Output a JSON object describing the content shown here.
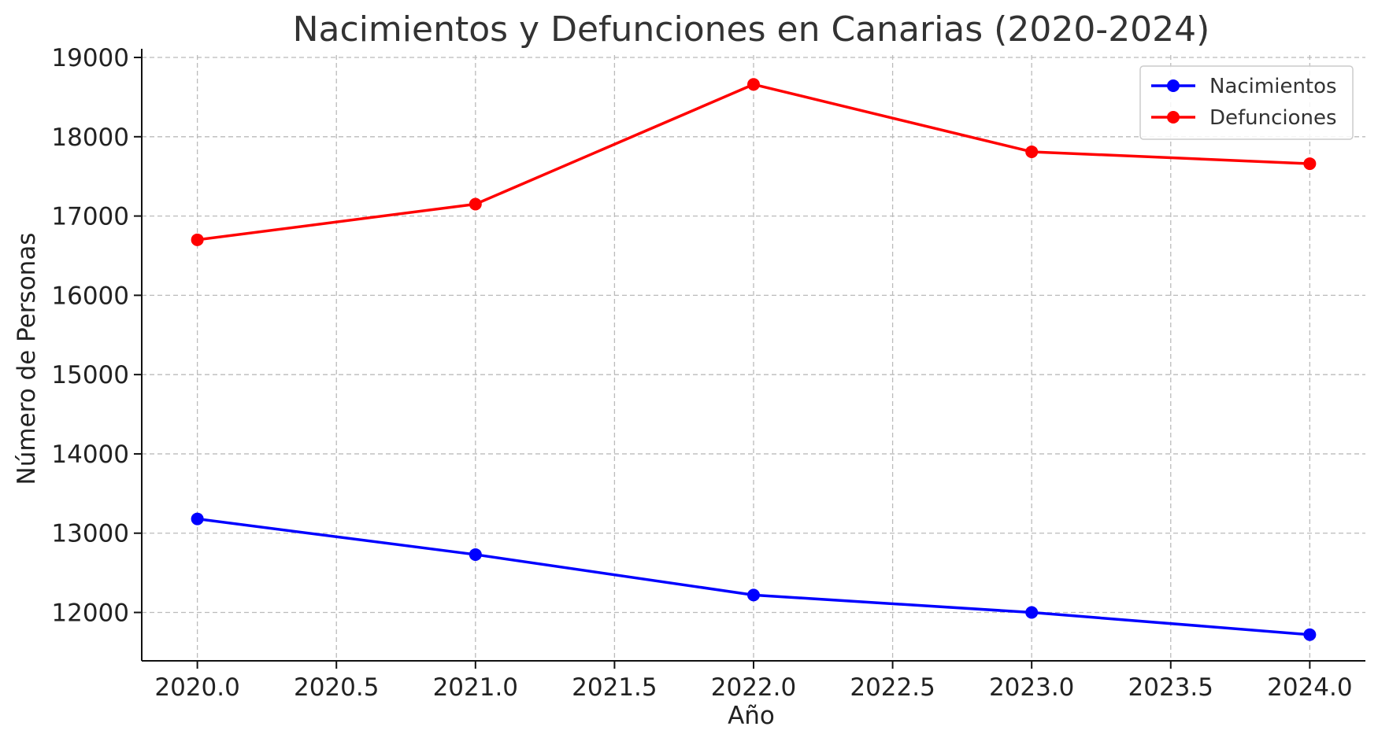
{
  "chart_data": {
    "type": "line",
    "title": "Nacimientos y Defunciones en Canarias (2020-2024)",
    "xlabel": "Año",
    "ylabel": "Número de Personas",
    "x": [
      2020,
      2021,
      2022,
      2023,
      2024
    ],
    "x_ticks": [
      "2020.0",
      "2020.5",
      "2021.0",
      "2021.5",
      "2022.0",
      "2022.5",
      "2023.0",
      "2023.5",
      "2024.0"
    ],
    "y_ticks": [
      "12000",
      "13000",
      "14000",
      "15000",
      "16000",
      "17000",
      "18000",
      "19000"
    ],
    "xlim": [
      2019.8,
      2024.2
    ],
    "ylim": [
      11390,
      19030
    ],
    "grid": true,
    "legend_position": "top-right",
    "series": [
      {
        "name": "Nacimientos",
        "color": "#0000ff",
        "values": [
          13180,
          12730,
          12220,
          12000,
          11720
        ]
      },
      {
        "name": "Defunciones",
        "color": "#ff0000",
        "values": [
          16700,
          17150,
          18660,
          17810,
          17660
        ]
      }
    ]
  }
}
